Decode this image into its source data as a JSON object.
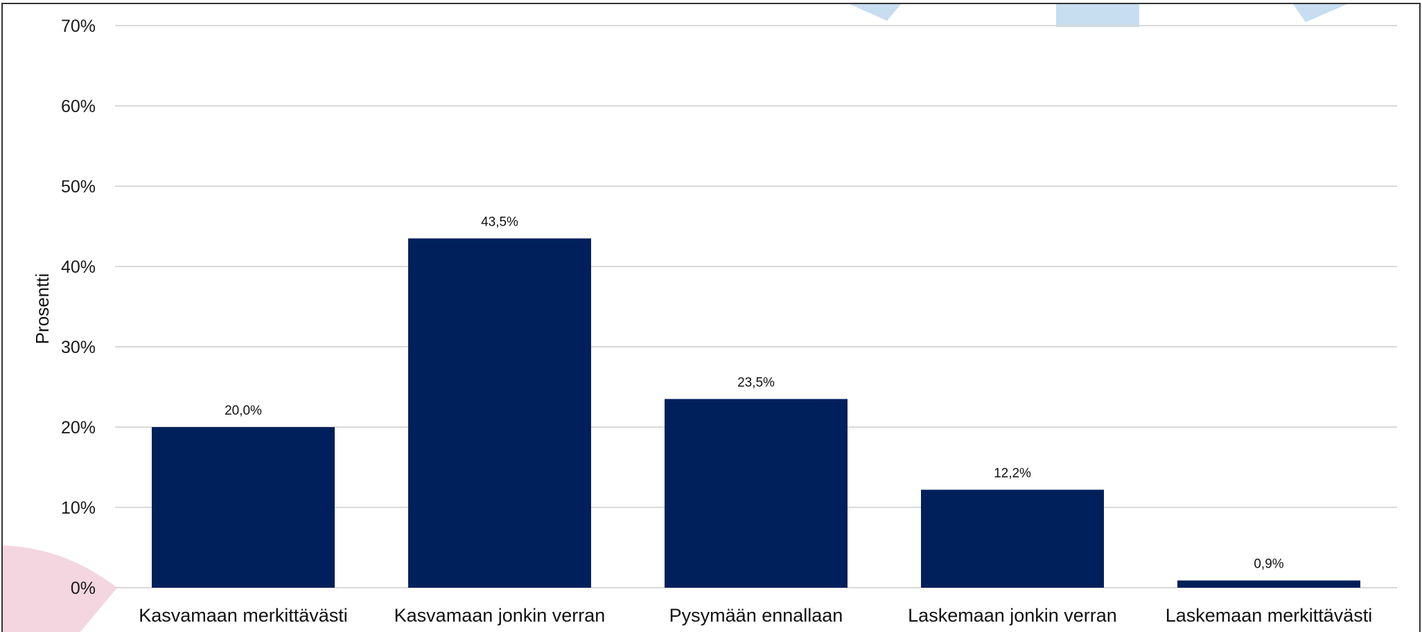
{
  "chart_data": {
    "type": "bar",
    "categories": [
      "Kasvamaan merkittävästi",
      "Kasvamaan jonkin verran",
      "Pysymään ennallaan",
      "Laskemaan jonkin verran",
      "Laskemaan merkittävästi"
    ],
    "values": [
      20.0,
      43.5,
      23.5,
      12.2,
      0.9
    ],
    "data_labels": [
      "20,0%",
      "43,5%",
      "23,5%",
      "12,2%",
      "0,9%"
    ],
    "title": "",
    "xlabel": "",
    "ylabel": "Prosentti",
    "ylim": [
      0,
      70
    ],
    "yticks": [
      0,
      10,
      20,
      30,
      40,
      50,
      60,
      70
    ],
    "ytick_labels": [
      "0%",
      "10%",
      "20%",
      "30%",
      "40%",
      "50%",
      "60%",
      "70%"
    ],
    "grid": true,
    "legend": "none",
    "colors": {
      "bar": "#00205b",
      "grid": "#d9d9d9",
      "decor_blue": "#c7ddf0",
      "decor_pink": "#f3d6df"
    }
  }
}
